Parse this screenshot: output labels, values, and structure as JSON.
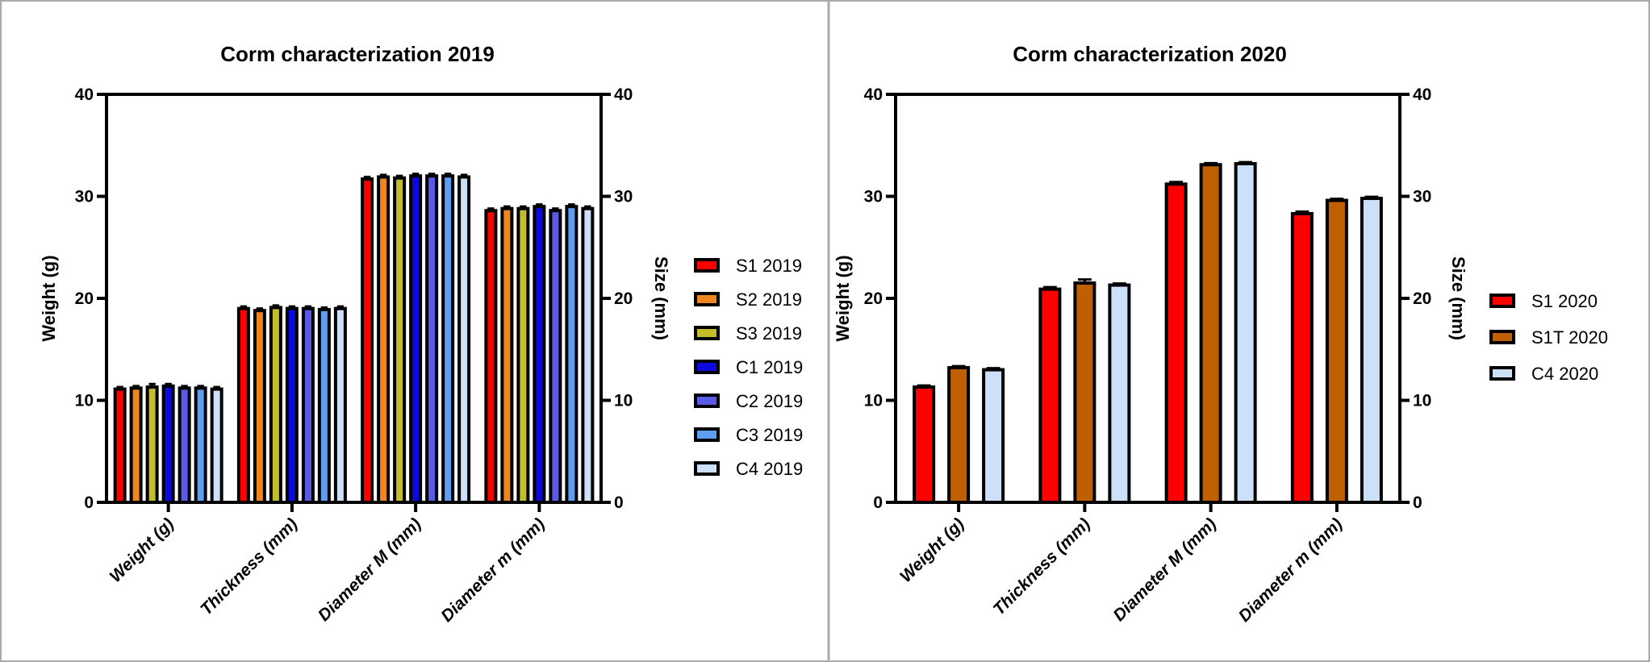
{
  "chart_data": [
    {
      "type": "bar",
      "title": "Corm characterization 2019",
      "ylabel": "Weight (g)",
      "y2label": "Size (mm)",
      "xlabel": "",
      "ylim": [
        0,
        40
      ],
      "y2lim": [
        0,
        40
      ],
      "yticks": [
        "0",
        "10",
        "20",
        "30",
        "40"
      ],
      "grid": false,
      "legend": "right",
      "categories": [
        "Weight (g)",
        "Thickness (mm)",
        "Diameter M (mm)",
        "Diameter m (mm)"
      ],
      "series": [
        {
          "name": "S1 2019",
          "color": "#ff0000",
          "values": [
            11.1,
            19.0,
            31.7,
            28.6
          ],
          "error": [
            0.2,
            0.2,
            0.2,
            0.2
          ]
        },
        {
          "name": "S2 2019",
          "color": "#f0861e",
          "values": [
            11.2,
            18.8,
            31.9,
            28.8
          ],
          "error": [
            0.2,
            0.2,
            0.2,
            0.2
          ]
        },
        {
          "name": "S3 2019",
          "color": "#c4bd2a",
          "values": [
            11.3,
            19.1,
            31.8,
            28.8
          ],
          "error": [
            0.3,
            0.2,
            0.2,
            0.2
          ]
        },
        {
          "name": "C1 2019",
          "color": "#0a0ae0",
          "values": [
            11.4,
            19.0,
            32.0,
            29.0
          ],
          "error": [
            0.2,
            0.2,
            0.2,
            0.2
          ]
        },
        {
          "name": "C2 2019",
          "color": "#5a5ae6",
          "values": [
            11.2,
            19.0,
            32.0,
            28.6
          ],
          "error": [
            0.2,
            0.2,
            0.2,
            0.2
          ]
        },
        {
          "name": "C3 2019",
          "color": "#5c9ff0",
          "values": [
            11.2,
            18.9,
            32.0,
            29.0
          ],
          "error": [
            0.2,
            0.2,
            0.2,
            0.2
          ]
        },
        {
          "name": "C4 2019",
          "color": "#cde0f8",
          "values": [
            11.1,
            19.0,
            31.9,
            28.8
          ],
          "error": [
            0.2,
            0.2,
            0.2,
            0.2
          ]
        }
      ]
    },
    {
      "type": "bar",
      "title": "Corm characterization 2020",
      "ylabel": "Weight (g)",
      "y2label": "Size (mm)",
      "xlabel": "",
      "ylim": [
        0,
        40
      ],
      "y2lim": [
        0,
        40
      ],
      "yticks": [
        "0",
        "10",
        "20",
        "30",
        "40"
      ],
      "grid": false,
      "legend": "right",
      "categories": [
        "Weight (g)",
        "Thickness (mm)",
        "Diameter M (mm)",
        "Diameter m (mm)"
      ],
      "series": [
        {
          "name": "S1 2020",
          "color": "#ff0000",
          "values": [
            11.3,
            20.9,
            31.2,
            28.3
          ],
          "error": [
            0.15,
            0.2,
            0.2,
            0.2
          ]
        },
        {
          "name": "S1T 2020",
          "color": "#bf5f00",
          "values": [
            13.2,
            21.5,
            33.1,
            29.6
          ],
          "error": [
            0.15,
            0.35,
            0.15,
            0.15
          ]
        },
        {
          "name": "C4 2020",
          "color": "#cce0f8",
          "values": [
            13.0,
            21.3,
            33.2,
            29.8
          ],
          "error": [
            0.15,
            0.15,
            0.15,
            0.15
          ]
        }
      ]
    }
  ]
}
